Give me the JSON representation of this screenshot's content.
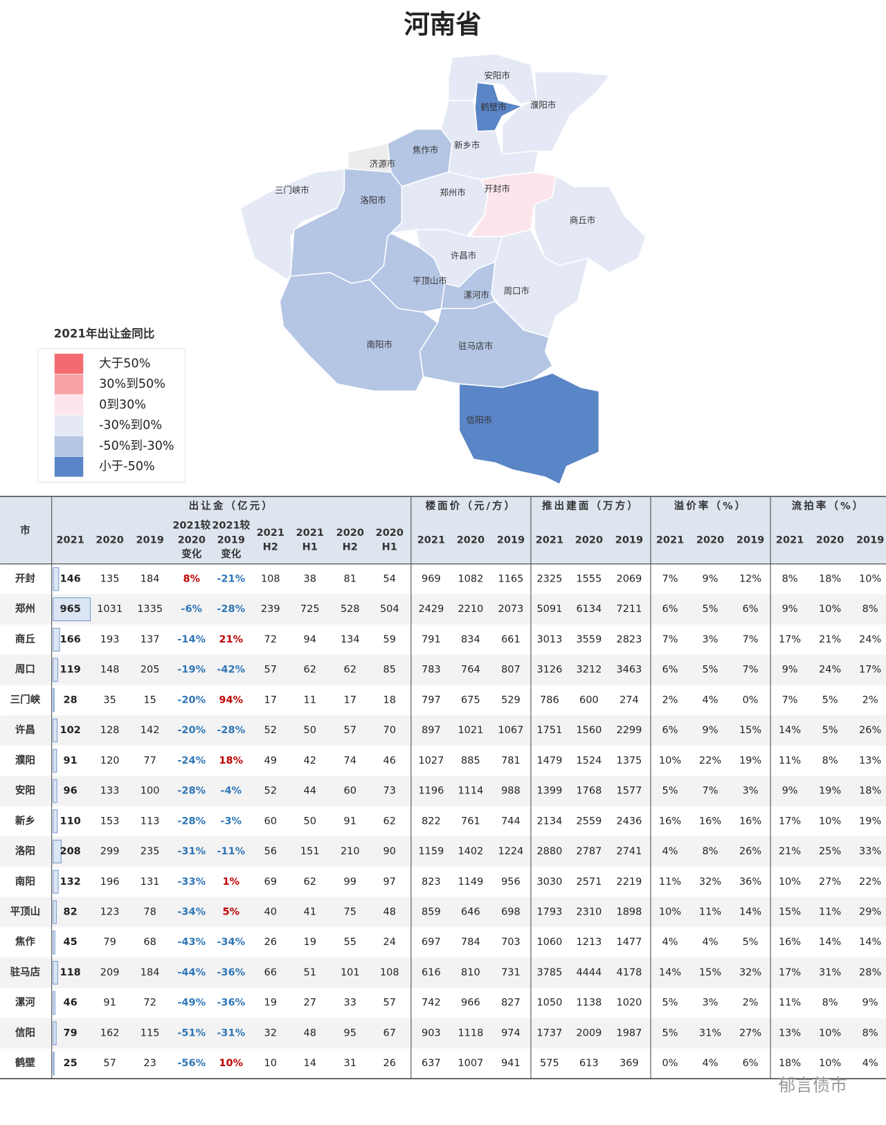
{
  "title": "河南省",
  "map": {
    "regions": [
      {
        "name": "安阳市",
        "color": "#e4e9f5"
      },
      {
        "name": "濮阳市",
        "color": "#e4e9f5"
      },
      {
        "name": "新乡市",
        "color": "#e4e9f5"
      },
      {
        "name": "鹤壁市",
        "color": "#5a85c6"
      },
      {
        "name": "焦作市",
        "color": "#b4c6e4"
      },
      {
        "name": "济源市",
        "color": "#ececec"
      },
      {
        "name": "三门峡市",
        "color": "#e4e9f5"
      },
      {
        "name": "洛阳市",
        "color": "#b4c6e4"
      },
      {
        "name": "郑州市",
        "color": "#e4e9f5"
      },
      {
        "name": "开封市",
        "color": "#fce6ec"
      },
      {
        "name": "商丘市",
        "color": "#e4e9f5"
      },
      {
        "name": "许昌市",
        "color": "#e4e9f5"
      },
      {
        "name": "周口市",
        "color": "#e4e9f5"
      },
      {
        "name": "平顶山市",
        "color": "#b4c6e4"
      },
      {
        "name": "漯河市",
        "color": "#b4c6e4"
      },
      {
        "name": "南阳市",
        "color": "#b4c6e4"
      },
      {
        "name": "驻马店市",
        "color": "#b4c6e4"
      },
      {
        "name": "信阳市",
        "color": "#5a85c6"
      }
    ],
    "legend": {
      "title": "2021年出让金同比",
      "items": [
        {
          "label": "大于50%",
          "color": "#f26b6f"
        },
        {
          "label": "30%到50%",
          "color": "#f7a3a5"
        },
        {
          "label": "0到30%",
          "color": "#fce6ec"
        },
        {
          "label": "-30%到0%",
          "color": "#e4e9f5"
        },
        {
          "label": "-50%到-30%",
          "color": "#b4c6e4"
        },
        {
          "label": "小于-50%",
          "color": "#5a85c6"
        }
      ]
    }
  },
  "table": {
    "city_header": "市",
    "groups": [
      {
        "label": "出让金（亿元）",
        "span": 9
      },
      {
        "label": "楼面价（元/方）",
        "span": 3
      },
      {
        "label": "推出建面（万方）",
        "span": 3
      },
      {
        "label": "溢价率（%）",
        "span": 3
      },
      {
        "label": "流拍率（%）",
        "span": 3
      }
    ],
    "columns": [
      [
        "2021"
      ],
      [
        "2020"
      ],
      [
        "2019"
      ],
      [
        "2021较",
        "2020",
        "变化"
      ],
      [
        "2021较",
        "2019",
        "变化"
      ],
      [
        "2021",
        "H2"
      ],
      [
        "2021",
        "H1"
      ],
      [
        "2020",
        "H2"
      ],
      [
        "2020",
        "H1"
      ],
      [
        "2021"
      ],
      [
        "2020"
      ],
      [
        "2019"
      ],
      [
        "2021"
      ],
      [
        "2020"
      ],
      [
        "2019"
      ],
      [
        "2021"
      ],
      [
        "2020"
      ],
      [
        "2019"
      ],
      [
        "2021"
      ],
      [
        "2020"
      ],
      [
        "2019"
      ]
    ],
    "rows": [
      [
        "开封",
        146,
        135,
        184,
        "8%",
        "-21%",
        108,
        38,
        81,
        54,
        969,
        1082,
        1165,
        2325,
        1555,
        2069,
        "7%",
        "9%",
        "12%",
        "8%",
        "18%",
        "10%"
      ],
      [
        "郑州",
        965,
        1031,
        1335,
        "-6%",
        "-28%",
        239,
        725,
        528,
        504,
        2429,
        2210,
        2073,
        5091,
        6134,
        7211,
        "6%",
        "5%",
        "6%",
        "9%",
        "10%",
        "8%"
      ],
      [
        "商丘",
        166,
        193,
        137,
        "-14%",
        "21%",
        72,
        94,
        134,
        59,
        791,
        834,
        661,
        3013,
        3559,
        2823,
        "7%",
        "3%",
        "7%",
        "17%",
        "21%",
        "24%"
      ],
      [
        "周口",
        119,
        148,
        205,
        "-19%",
        "-42%",
        57,
        62,
        62,
        85,
        783,
        764,
        807,
        3126,
        3212,
        3463,
        "6%",
        "5%",
        "7%",
        "9%",
        "24%",
        "17%"
      ],
      [
        "三门峡",
        28,
        35,
        15,
        "-20%",
        "94%",
        17,
        11,
        17,
        18,
        797,
        675,
        529,
        786,
        600,
        274,
        "2%",
        "4%",
        "0%",
        "7%",
        "5%",
        "2%"
      ],
      [
        "许昌",
        102,
        128,
        142,
        "-20%",
        "-28%",
        52,
        50,
        57,
        70,
        897,
        1021,
        1067,
        1751,
        1560,
        2299,
        "6%",
        "9%",
        "15%",
        "14%",
        "5%",
        "26%"
      ],
      [
        "濮阳",
        91,
        120,
        77,
        "-24%",
        "18%",
        49,
        42,
        74,
        46,
        1027,
        885,
        781,
        1479,
        1524,
        1375,
        "10%",
        "22%",
        "19%",
        "11%",
        "8%",
        "13%"
      ],
      [
        "安阳",
        96,
        133,
        100,
        "-28%",
        "-4%",
        52,
        44,
        60,
        73,
        1196,
        1114,
        988,
        1399,
        1768,
        1577,
        "5%",
        "7%",
        "3%",
        "9%",
        "19%",
        "18%"
      ],
      [
        "新乡",
        110,
        153,
        113,
        "-28%",
        "-3%",
        60,
        50,
        91,
        62,
        822,
        761,
        744,
        2134,
        2559,
        2436,
        "16%",
        "16%",
        "16%",
        "17%",
        "10%",
        "19%"
      ],
      [
        "洛阳",
        208,
        299,
        235,
        "-31%",
        "-11%",
        56,
        151,
        210,
        90,
        1159,
        1402,
        1224,
        2880,
        2787,
        2741,
        "4%",
        "8%",
        "26%",
        "21%",
        "25%",
        "33%"
      ],
      [
        "南阳",
        132,
        196,
        131,
        "-33%",
        "1%",
        69,
        62,
        99,
        97,
        823,
        1149,
        956,
        3030,
        2571,
        2219,
        "11%",
        "32%",
        "36%",
        "10%",
        "27%",
        "22%"
      ],
      [
        "平顶山",
        82,
        123,
        78,
        "-34%",
        "5%",
        40,
        41,
        75,
        48,
        859,
        646,
        698,
        1793,
        2310,
        1898,
        "10%",
        "11%",
        "14%",
        "15%",
        "11%",
        "29%"
      ],
      [
        "焦作",
        45,
        79,
        68,
        "-43%",
        "-34%",
        26,
        19,
        55,
        24,
        697,
        784,
        703,
        1060,
        1213,
        1477,
        "4%",
        "4%",
        "5%",
        "16%",
        "14%",
        "14%"
      ],
      [
        "驻马店",
        118,
        209,
        184,
        "-44%",
        "-36%",
        66,
        51,
        101,
        108,
        616,
        810,
        731,
        3785,
        4444,
        4178,
        "14%",
        "15%",
        "32%",
        "17%",
        "31%",
        "28%"
      ],
      [
        "漯河",
        46,
        91,
        72,
        "-49%",
        "-36%",
        19,
        27,
        33,
        57,
        742,
        966,
        827,
        1050,
        1138,
        1020,
        "5%",
        "3%",
        "2%",
        "11%",
        "8%",
        "9%"
      ],
      [
        "信阳",
        79,
        162,
        115,
        "-51%",
        "-31%",
        32,
        48,
        95,
        67,
        903,
        1118,
        974,
        1737,
        2009,
        1987,
        "5%",
        "31%",
        "27%",
        "13%",
        "10%",
        "8%"
      ],
      [
        "鹤壁",
        25,
        57,
        23,
        "-56%",
        "10%",
        10,
        14,
        31,
        26,
        637,
        1007,
        941,
        575,
        613,
        369,
        "0%",
        "4%",
        "6%",
        "18%",
        "10%",
        "4%"
      ]
    ]
  },
  "watermark": "郁言债市"
}
